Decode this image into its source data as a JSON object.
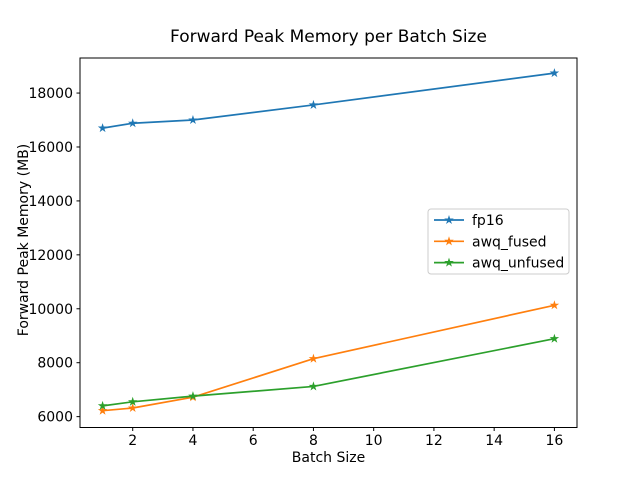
{
  "chart_data": {
    "type": "line",
    "title": "Forward Peak Memory per Batch Size",
    "xlabel": "Batch Size",
    "ylabel": "Forward Peak Memory (MB)",
    "x": [
      1,
      2,
      4,
      8,
      16
    ],
    "series": [
      {
        "name": "fp16",
        "color": "#1f77b4",
        "values": [
          16700,
          16880,
          17000,
          17560,
          18740
        ]
      },
      {
        "name": "awq_fused",
        "color": "#ff7f0e",
        "values": [
          6220,
          6320,
          6720,
          8150,
          10130
        ]
      },
      {
        "name": "awq_unfused",
        "color": "#2ca02c",
        "values": [
          6400,
          6550,
          6760,
          7120,
          8890
        ]
      }
    ],
    "xticks": [
      2,
      4,
      6,
      8,
      10,
      12,
      14,
      16
    ],
    "yticks": [
      6000,
      8000,
      10000,
      12000,
      14000,
      16000,
      18000
    ],
    "xlim": [
      0.25,
      16.75
    ],
    "ylim": [
      5597,
      19300
    ],
    "grid": false,
    "marker": "star",
    "legend": {
      "position": "center right",
      "entries": [
        "fp16",
        "awq_fused",
        "awq_unfused"
      ]
    },
    "background": "#ffffff",
    "spine_color": "#000000"
  }
}
